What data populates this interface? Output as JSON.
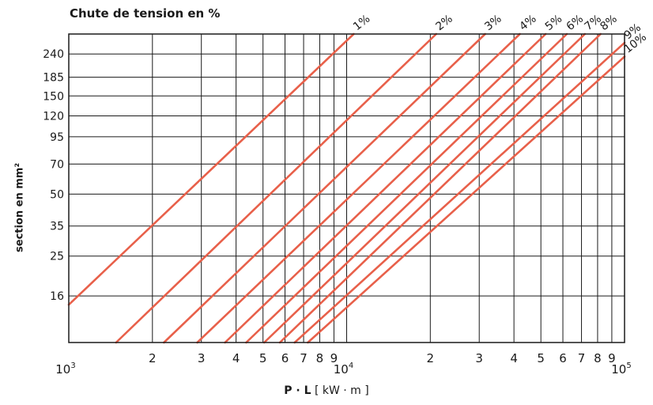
{
  "chart_data": {
    "type": "line",
    "title": "Chute de tension en %",
    "ylabel": "section en mm²",
    "xlabel": {
      "vars": "P · L",
      "unit": "[ kW · m ]"
    },
    "x_scale": "log",
    "y_scale": "log",
    "xlim": [
      1000,
      100000
    ],
    "ylim": [
      9.5,
      300
    ],
    "x_ticks": [
      {
        "v": 1000,
        "base": "10",
        "exp": "3"
      },
      {
        "v": 2000,
        "label": "2"
      },
      {
        "v": 3000,
        "label": "3"
      },
      {
        "v": 4000,
        "label": "4"
      },
      {
        "v": 5000,
        "label": "5"
      },
      {
        "v": 6000,
        "label": "6"
      },
      {
        "v": 7000,
        "label": "7"
      },
      {
        "v": 8000,
        "label": "8"
      },
      {
        "v": 9000,
        "label": "9"
      },
      {
        "v": 10000,
        "base": "10",
        "exp": "4"
      },
      {
        "v": 20000,
        "label": "2"
      },
      {
        "v": 30000,
        "label": "3"
      },
      {
        "v": 40000,
        "label": "4"
      },
      {
        "v": 50000,
        "label": "5"
      },
      {
        "v": 60000,
        "label": "6"
      },
      {
        "v": 70000,
        "label": "7"
      },
      {
        "v": 80000,
        "label": "8"
      },
      {
        "v": 90000,
        "label": "9"
      },
      {
        "v": 100000,
        "base": "10",
        "exp": "5"
      }
    ],
    "y_ticks": [
      16,
      25,
      35,
      50,
      70,
      95,
      120,
      150,
      185,
      240
    ],
    "grid": true,
    "line_color": "#e8604a",
    "series": [
      {
        "name": "1%",
        "points": [
          [
            1000,
            14.5
          ],
          [
            10600,
            300
          ]
        ]
      },
      {
        "name": "2%",
        "points": [
          [
            1480,
            9.5
          ],
          [
            21000,
            300
          ]
        ]
      },
      {
        "name": "3%",
        "points": [
          [
            2200,
            9.5
          ],
          [
            31500,
            300
          ]
        ]
      },
      {
        "name": "4%",
        "points": [
          [
            2900,
            9.5
          ],
          [
            42000,
            300
          ]
        ]
      },
      {
        "name": "5%",
        "points": [
          [
            3650,
            9.5
          ],
          [
            52000,
            300
          ]
        ]
      },
      {
        "name": "6%",
        "points": [
          [
            4350,
            9.5
          ],
          [
            62000,
            300
          ]
        ]
      },
      {
        "name": "7%",
        "points": [
          [
            5050,
            9.5
          ],
          [
            72000,
            300
          ]
        ]
      },
      {
        "name": "8%",
        "points": [
          [
            5750,
            9.5
          ],
          [
            82000,
            300
          ]
        ]
      },
      {
        "name": "9%",
        "points": [
          [
            6500,
            9.5
          ],
          [
            100000,
            272
          ]
        ]
      },
      {
        "name": "10%",
        "points": [
          [
            7250,
            9.5
          ],
          [
            100000,
            233
          ]
        ]
      }
    ]
  }
}
